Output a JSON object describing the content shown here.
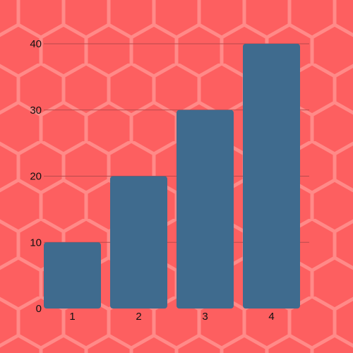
{
  "colors": {
    "background": "#FD5F60",
    "hex_pattern": "#FF8A88",
    "bar": "#3F6B8E",
    "gridline": "#B94A4C",
    "axis_text": "#111111"
  },
  "chart_data": {
    "type": "bar",
    "categories": [
      "1",
      "2",
      "3",
      "4"
    ],
    "values": [
      10,
      20,
      30,
      40
    ],
    "title": "",
    "xlabel": "",
    "ylabel": "",
    "ylim": [
      0,
      40
    ],
    "yticks": [
      "0",
      "10",
      "20",
      "30",
      "40"
    ],
    "grid": true,
    "legend": "none",
    "background_pattern": "hexagon"
  }
}
